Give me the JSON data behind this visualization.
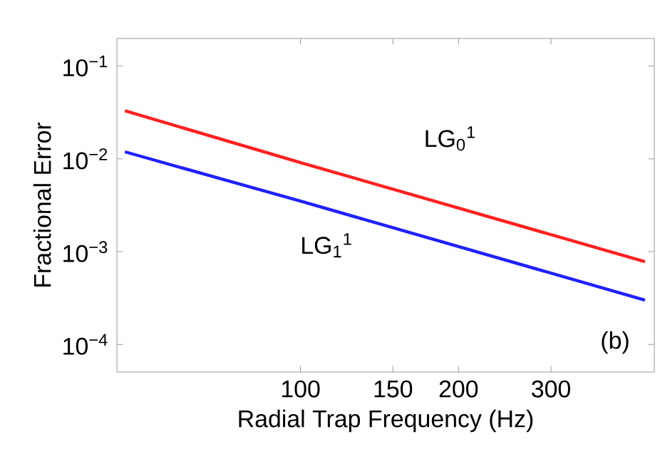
{
  "chart_data": {
    "type": "line",
    "xlabel": "Radial Trap Frequency (Hz)",
    "ylabel": "Fractional Error",
    "log": "xy",
    "grid": false,
    "xlim": [
      44.7,
      472
    ],
    "ylim": [
      5.04e-05,
      0.198
    ],
    "xticks": [
      100,
      150,
      200,
      300
    ],
    "yticks": [
      {
        "value": 0.1,
        "label": "10$^{−1}$"
      },
      {
        "value": 0.01,
        "label": "10$^{−2}$"
      },
      {
        "value": 0.001,
        "label": "10$^{−3}$"
      },
      {
        "value": 0.0001,
        "label": "10$^{−4}$"
      }
    ],
    "x": [
      46.3,
      100,
      453
    ],
    "series": [
      {
        "color": "#ff2020",
        "values": [
          0.033,
          0.0091,
          0.00078
        ]
      },
      {
        "color": "#2020ff",
        "values": [
          0.0119,
          0.0035,
          0.0003
        ]
      }
    ],
    "annotations": [
      "LG$_{0}$$^{1}$",
      "LG$_{1}$$^{1}$",
      "(b)"
    ]
  }
}
